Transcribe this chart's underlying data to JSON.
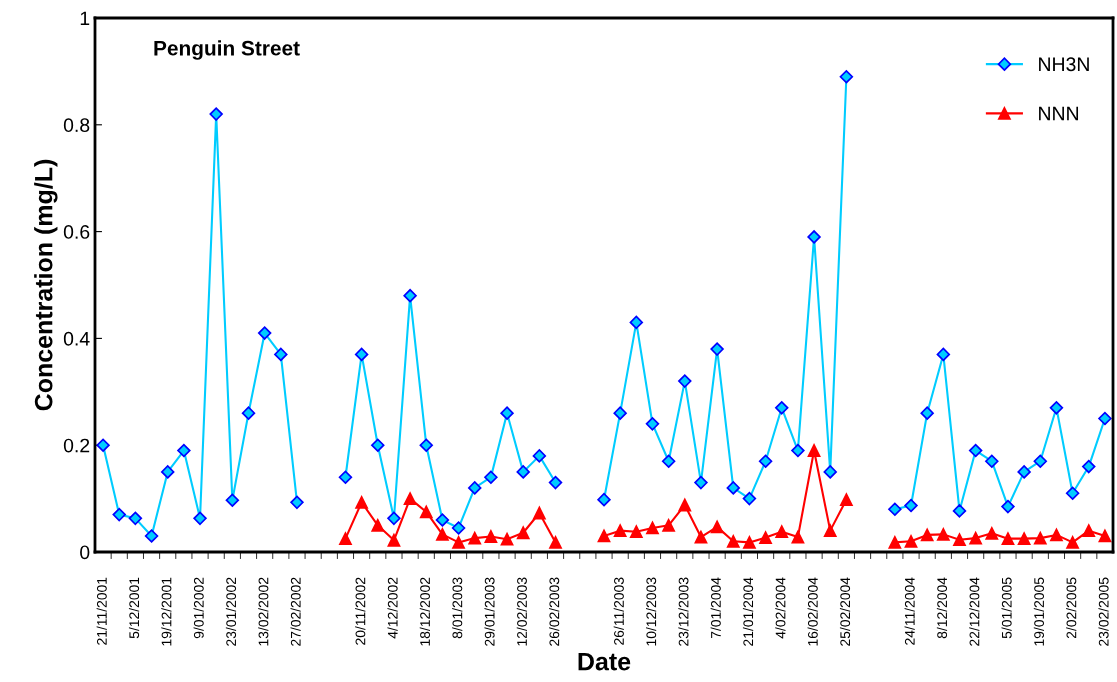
{
  "chart_data": {
    "type": "line",
    "title": "Penguin Street",
    "xlabel": "Date",
    "ylabel": "Concentration (mg/L)",
    "categories": [
      "21/11/2001",
      null,
      "5/12/2001",
      null,
      "19/12/2001",
      null,
      "9/01/2002",
      null,
      "23/01/2002",
      null,
      "13/02/2002",
      null,
      "27/02/2002",
      null,
      null,
      null,
      "20/11/2002",
      null,
      "4/12/2002",
      null,
      "18/12/2002",
      null,
      "8/01/2003",
      null,
      "29/01/2003",
      null,
      "12/02/2003",
      null,
      "26/02/2003",
      null,
      null,
      null,
      "26/11/2003",
      null,
      "10/12/2003",
      null,
      "23/12/2003",
      null,
      "7/01/2004",
      null,
      "21/01/2004",
      null,
      "4/02/2004",
      null,
      "16/02/2004",
      null,
      "25/02/2004",
      null,
      null,
      null,
      "24/11/2004",
      null,
      "8/12/2004",
      null,
      "22/12/2004",
      null,
      "5/01/2005",
      null,
      "19/01/2005",
      null,
      "2/02/2005",
      null,
      "23/02/2005"
    ],
    "series": [
      {
        "name": "NH3N",
        "color": "#00ccff",
        "marker": "diamond",
        "values": [
          0.2,
          0.07,
          0.063,
          0.03,
          0.15,
          0.19,
          0.063,
          0.82,
          0.097,
          0.26,
          0.41,
          0.37,
          0.093,
          null,
          null,
          0.14,
          0.37,
          0.2,
          0.063,
          0.48,
          0.2,
          0.06,
          0.045,
          0.12,
          0.14,
          0.26,
          0.15,
          0.18,
          0.13,
          null,
          null,
          0.098,
          0.26,
          0.43,
          0.24,
          0.17,
          0.32,
          0.13,
          0.38,
          0.12,
          0.1,
          0.17,
          0.27,
          0.19,
          0.59,
          0.15,
          0.89,
          null,
          null,
          0.08,
          0.087,
          0.26,
          0.37,
          0.077,
          0.19,
          0.17,
          0.085,
          0.15,
          0.17,
          0.27,
          0.11,
          0.16,
          0.25
        ]
      },
      {
        "name": "NNN",
        "color": "#ff0000",
        "marker": "triangle",
        "values": [
          null,
          null,
          null,
          null,
          null,
          null,
          null,
          null,
          null,
          null,
          null,
          null,
          null,
          null,
          null,
          0.025,
          0.093,
          0.05,
          0.022,
          0.1,
          0.075,
          0.033,
          0.018,
          0.026,
          0.029,
          0.024,
          0.036,
          0.073,
          0.018,
          null,
          null,
          0.03,
          0.04,
          0.038,
          0.045,
          0.05,
          0.088,
          0.028,
          0.047,
          0.02,
          0.018,
          0.027,
          0.038,
          0.028,
          0.19,
          0.04,
          0.098,
          null,
          null,
          0.018,
          0.02,
          0.032,
          0.033,
          0.023,
          0.026,
          0.035,
          0.025,
          0.025,
          0.026,
          0.032,
          0.018,
          0.04,
          0.03
        ]
      }
    ],
    "ylim": [
      0,
      1
    ],
    "yticks": [
      0,
      0.2,
      0.4,
      0.6,
      0.8,
      1
    ],
    "grid": false,
    "legend": "top right",
    "line_style": "solid"
  }
}
